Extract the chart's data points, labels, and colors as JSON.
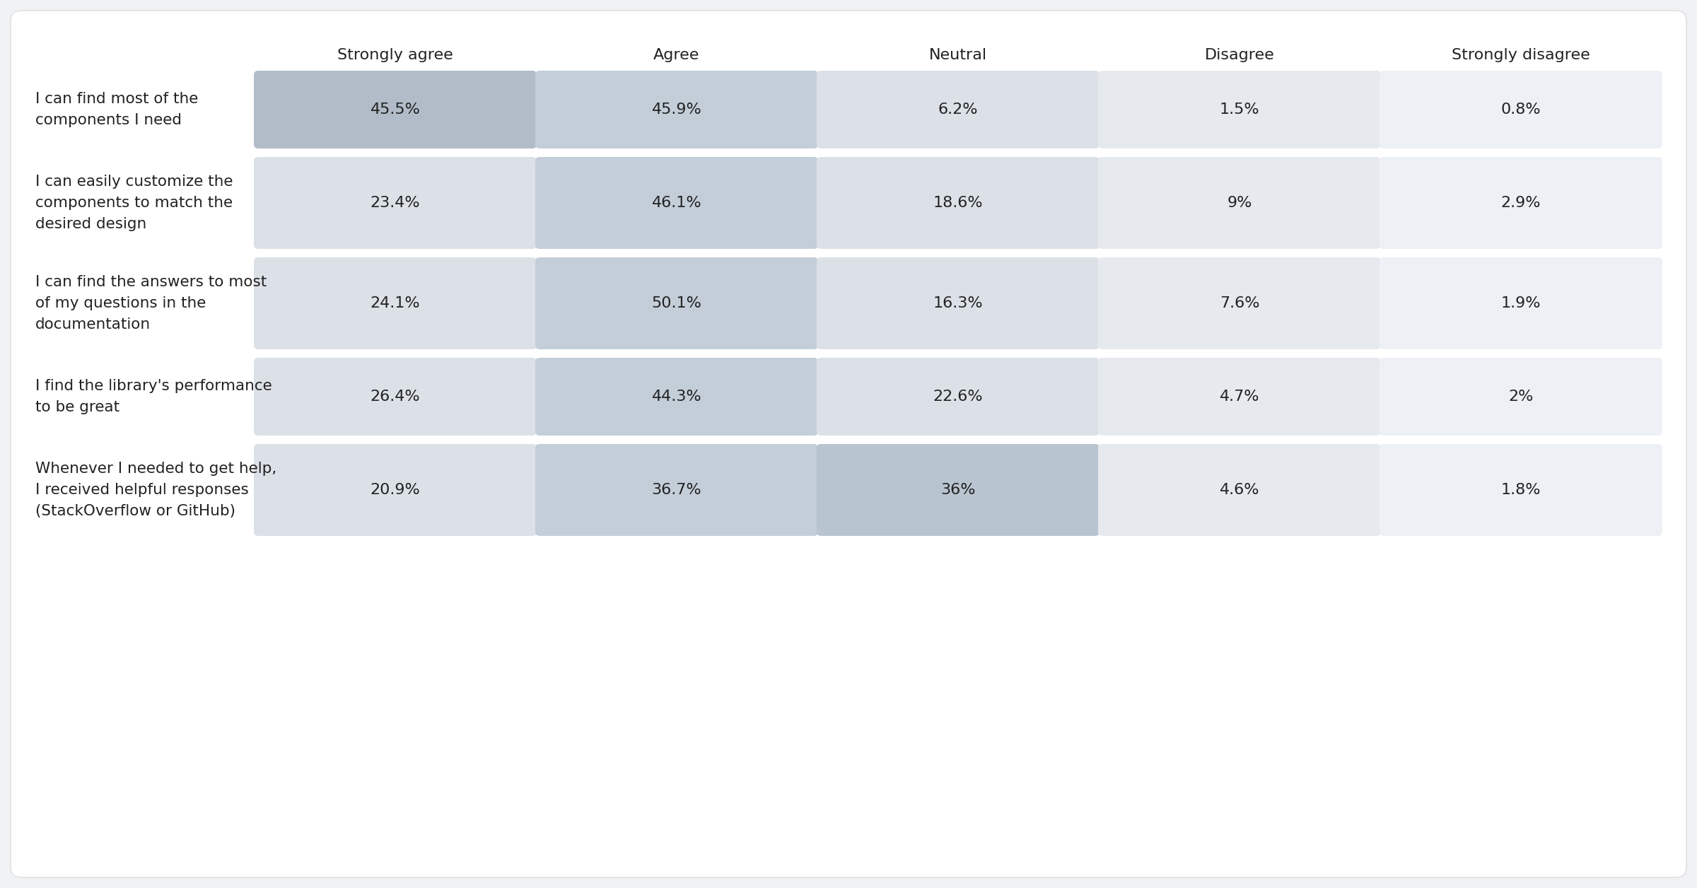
{
  "columns": [
    "Strongly agree",
    "Agree",
    "Neutral",
    "Disagree",
    "Strongly disagree"
  ],
  "rows": [
    {
      "label": "I can find most of the\ncomponents I need",
      "values": [
        "45.5%",
        "45.9%",
        "6.2%",
        "1.5%",
        "0.8%"
      ]
    },
    {
      "label": "I can easily customize the\ncomponents to match the\ndesired design",
      "values": [
        "23.4%",
        "46.1%",
        "18.6%",
        "9%",
        "2.9%"
      ]
    },
    {
      "label": "I can find the answers to most\nof my questions in the\ndocumentation",
      "values": [
        "24.1%",
        "50.1%",
        "16.3%",
        "7.6%",
        "1.9%"
      ]
    },
    {
      "label": "I find the library's performance\nto be great",
      "values": [
        "26.4%",
        "44.3%",
        "22.6%",
        "4.7%",
        "2%"
      ]
    },
    {
      "label": "Whenever I needed to get help,\nI received helpful responses\n(StackOverflow or GitHub)",
      "values": [
        "20.9%",
        "36.7%",
        "36%",
        "4.6%",
        "1.8%"
      ]
    }
  ],
  "cell_colors": [
    [
      "#b2bcc8",
      "#c4ced9",
      "#dce1e8",
      "#e6e9ee",
      "#edf0f4"
    ],
    [
      "#dce1e8",
      "#c4ced9",
      "#dce1e8",
      "#e6e9ee",
      "#edf0f4"
    ],
    [
      "#dce1e8",
      "#c4ced9",
      "#dce1e8",
      "#e6e9ee",
      "#edf0f4"
    ],
    [
      "#dce1e8",
      "#c4ced9",
      "#dce1e8",
      "#e6e9ee",
      "#edf0f4"
    ],
    [
      "#dce1e8",
      "#c4ced9",
      "#b8c4cf",
      "#e6e9ee",
      "#edf0f4"
    ]
  ],
  "outer_bg": "#f0f2f5",
  "card_bg": "#ffffff",
  "text_color": "#222222",
  "header_color": "#222222",
  "font_size": 16,
  "header_font_size": 16,
  "row_label_font_size": 15.5
}
